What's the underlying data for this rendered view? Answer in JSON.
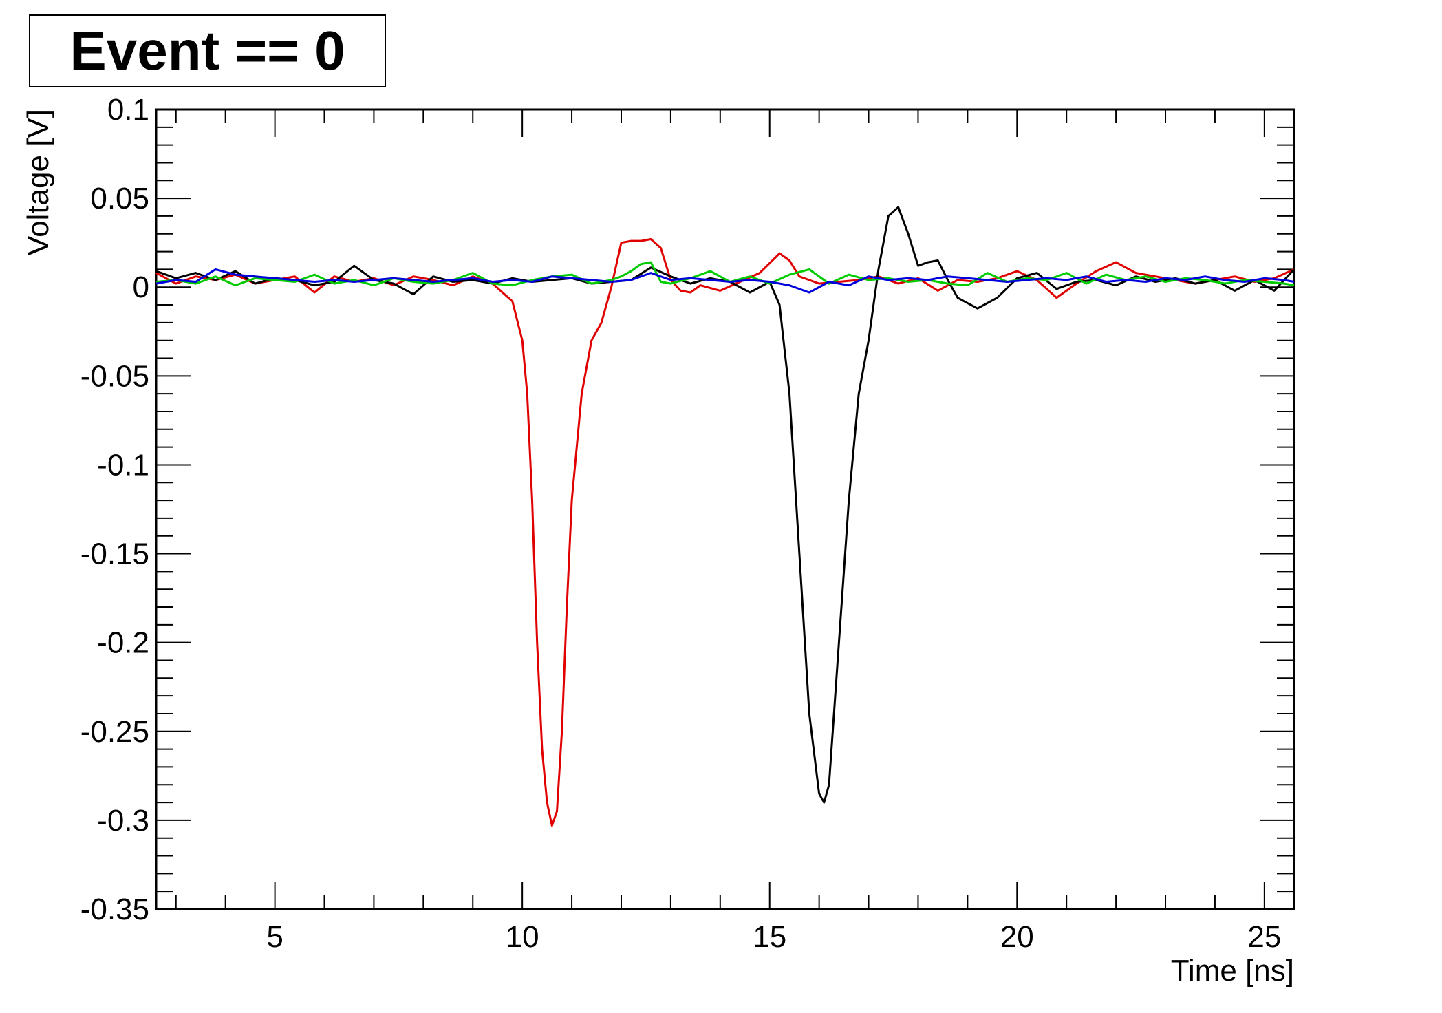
{
  "title": "Event == 0",
  "chart_data": {
    "type": "line",
    "title": "Event == 0",
    "xlabel": "Time [ns]",
    "ylabel": "Voltage [V]",
    "xlim": [
      2.6,
      25.6
    ],
    "ylim": [
      -0.35,
      0.1
    ],
    "x_ticks": [
      5,
      10,
      15,
      20,
      25
    ],
    "x_tick_labels": [
      "5",
      "10",
      "15",
      "20",
      "25"
    ],
    "y_ticks": [
      0.1,
      0.05,
      0,
      -0.05,
      -0.1,
      -0.15,
      -0.2,
      -0.25,
      -0.3,
      -0.35
    ],
    "y_tick_labels": [
      "0.1",
      "0.05",
      "0",
      "-0.05",
      "-0.1",
      "-0.15",
      "-0.2",
      "-0.25",
      "-0.3",
      "-0.35"
    ],
    "grid": false,
    "series": [
      {
        "color": "#e00000",
        "x": [
          2.6,
          3.0,
          3.4,
          3.8,
          4.2,
          4.6,
          5.0,
          5.4,
          5.8,
          6.2,
          6.6,
          7.0,
          7.4,
          7.8,
          8.2,
          8.6,
          9.0,
          9.4,
          9.6,
          9.8,
          10.0,
          10.1,
          10.2,
          10.3,
          10.4,
          10.5,
          10.6,
          10.7,
          10.8,
          10.9,
          11.0,
          11.1,
          11.2,
          11.4,
          11.6,
          11.8,
          12.0,
          12.2,
          12.4,
          12.6,
          12.8,
          13.0,
          13.2,
          13.4,
          13.6,
          14.0,
          14.4,
          14.8,
          15.2,
          15.4,
          15.6,
          15.8,
          16.0,
          16.4,
          16.8,
          17.2,
          17.6,
          18.0,
          18.4,
          18.8,
          19.2,
          19.6,
          20.0,
          20.4,
          20.8,
          21.2,
          21.6,
          22.0,
          22.4,
          22.8,
          23.2,
          23.6,
          24.0,
          24.4,
          24.8,
          25.2,
          25.6
        ],
        "y": [
          0.008,
          0.002,
          0.006,
          0.004,
          0.007,
          0.002,
          0.004,
          0.006,
          -0.003,
          0.006,
          0.003,
          0.005,
          0.001,
          0.006,
          0.004,
          0.001,
          0.006,
          0.002,
          -0.003,
          -0.008,
          -0.03,
          -0.06,
          -0.12,
          -0.2,
          -0.26,
          -0.29,
          -0.303,
          -0.295,
          -0.25,
          -0.18,
          -0.12,
          -0.09,
          -0.06,
          -0.03,
          -0.02,
          0.0,
          0.025,
          0.026,
          0.026,
          0.027,
          0.022,
          0.004,
          -0.002,
          -0.003,
          0.001,
          -0.002,
          0.003,
          0.008,
          0.019,
          0.015,
          0.006,
          0.004,
          0.002,
          0.003,
          0.004,
          0.006,
          0.002,
          0.005,
          -0.002,
          0.004,
          0.003,
          0.005,
          0.009,
          0.004,
          -0.006,
          0.002,
          0.009,
          0.014,
          0.008,
          0.006,
          0.004,
          0.002,
          0.004,
          0.006,
          0.003,
          0.005,
          0.01
        ]
      },
      {
        "color": "#000000",
        "x": [
          2.6,
          3.0,
          3.4,
          3.8,
          4.2,
          4.6,
          5.0,
          5.4,
          5.8,
          6.2,
          6.6,
          7.0,
          7.4,
          7.8,
          8.2,
          8.6,
          9.0,
          9.4,
          9.8,
          10.2,
          10.6,
          11.0,
          11.4,
          11.8,
          12.2,
          12.6,
          13.0,
          13.4,
          13.8,
          14.2,
          14.6,
          15.0,
          15.2,
          15.4,
          15.6,
          15.8,
          16.0,
          16.1,
          16.2,
          16.4,
          16.6,
          16.8,
          17.0,
          17.2,
          17.4,
          17.6,
          17.8,
          18.0,
          18.2,
          18.4,
          18.6,
          18.8,
          19.2,
          19.6,
          20.0,
          20.4,
          20.8,
          21.2,
          21.6,
          22.0,
          22.4,
          22.8,
          23.2,
          23.6,
          24.0,
          24.4,
          24.8,
          25.2,
          25.6
        ],
        "y": [
          0.009,
          0.005,
          0.008,
          0.004,
          0.009,
          0.002,
          0.005,
          0.004,
          0.001,
          0.003,
          0.012,
          0.004,
          0.002,
          -0.004,
          0.006,
          0.003,
          0.004,
          0.002,
          0.005,
          0.003,
          0.004,
          0.005,
          0.002,
          0.003,
          0.004,
          0.011,
          0.006,
          0.002,
          0.005,
          0.003,
          -0.003,
          0.003,
          -0.01,
          -0.06,
          -0.15,
          -0.24,
          -0.285,
          -0.29,
          -0.28,
          -0.2,
          -0.12,
          -0.06,
          -0.03,
          0.01,
          0.04,
          0.045,
          0.03,
          0.012,
          0.014,
          0.015,
          0.004,
          -0.006,
          -0.012,
          -0.006,
          0.005,
          0.008,
          -0.001,
          0.003,
          0.004,
          0.001,
          0.006,
          0.003,
          0.005,
          0.002,
          0.004,
          -0.002,
          0.004,
          -0.002,
          0.01
        ]
      },
      {
        "color": "#00cc00",
        "x": [
          2.6,
          3.0,
          3.4,
          3.8,
          4.2,
          4.6,
          5.0,
          5.4,
          5.8,
          6.2,
          6.6,
          7.0,
          7.4,
          7.8,
          8.2,
          8.6,
          9.0,
          9.4,
          9.8,
          10.2,
          10.6,
          11.0,
          11.4,
          11.8,
          12.0,
          12.2,
          12.4,
          12.6,
          12.8,
          13.0,
          13.4,
          13.8,
          14.2,
          14.6,
          15.0,
          15.4,
          15.8,
          16.2,
          16.6,
          17.0,
          17.4,
          17.8,
          18.2,
          18.6,
          19.0,
          19.4,
          19.8,
          20.2,
          20.6,
          21.0,
          21.4,
          21.8,
          22.2,
          22.6,
          23.0,
          23.4,
          23.8,
          24.2,
          24.6,
          25.0,
          25.4,
          25.6
        ],
        "y": [
          0.003,
          0.004,
          0.002,
          0.006,
          0.001,
          0.005,
          0.004,
          0.003,
          0.007,
          0.002,
          0.004,
          0.001,
          0.005,
          0.003,
          0.002,
          0.004,
          0.008,
          0.002,
          0.001,
          0.004,
          0.006,
          0.007,
          0.002,
          0.004,
          0.006,
          0.009,
          0.013,
          0.014,
          0.003,
          0.002,
          0.005,
          0.009,
          0.003,
          0.006,
          0.002,
          0.007,
          0.01,
          0.002,
          0.007,
          0.004,
          0.005,
          0.003,
          0.004,
          0.002,
          0.001,
          0.008,
          0.003,
          0.005,
          0.004,
          0.008,
          0.002,
          0.007,
          0.004,
          0.006,
          0.003,
          0.005,
          0.004,
          0.002,
          0.004,
          0.003,
          0.002,
          0.001
        ]
      },
      {
        "color": "#0000dd",
        "x": [
          2.6,
          3.0,
          3.4,
          3.8,
          4.2,
          4.6,
          5.0,
          5.4,
          5.8,
          6.2,
          6.6,
          7.0,
          7.4,
          7.8,
          8.2,
          8.6,
          9.0,
          9.4,
          9.8,
          10.2,
          10.6,
          11.0,
          11.4,
          11.8,
          12.2,
          12.6,
          13.0,
          13.4,
          13.8,
          14.2,
          14.6,
          15.0,
          15.4,
          15.8,
          16.2,
          16.6,
          17.0,
          17.4,
          17.8,
          18.2,
          18.6,
          19.0,
          19.4,
          19.8,
          20.2,
          20.6,
          21.0,
          21.4,
          21.8,
          22.2,
          22.6,
          23.0,
          23.4,
          23.8,
          24.2,
          24.6,
          25.0,
          25.4,
          25.6
        ],
        "y": [
          0.002,
          0.004,
          0.003,
          0.01,
          0.007,
          0.006,
          0.005,
          0.004,
          0.003,
          0.004,
          0.003,
          0.004,
          0.005,
          0.004,
          0.003,
          0.004,
          0.005,
          0.003,
          0.004,
          0.003,
          0.006,
          0.005,
          0.004,
          0.003,
          0.004,
          0.008,
          0.004,
          0.005,
          0.004,
          0.003,
          0.004,
          0.003,
          0.001,
          -0.003,
          0.003,
          0.001,
          0.006,
          0.004,
          0.005,
          0.004,
          0.006,
          0.005,
          0.004,
          0.003,
          0.004,
          0.005,
          0.004,
          0.006,
          0.003,
          0.004,
          0.003,
          0.005,
          0.004,
          0.006,
          0.004,
          0.003,
          0.005,
          0.004,
          0.003
        ]
      }
    ]
  }
}
